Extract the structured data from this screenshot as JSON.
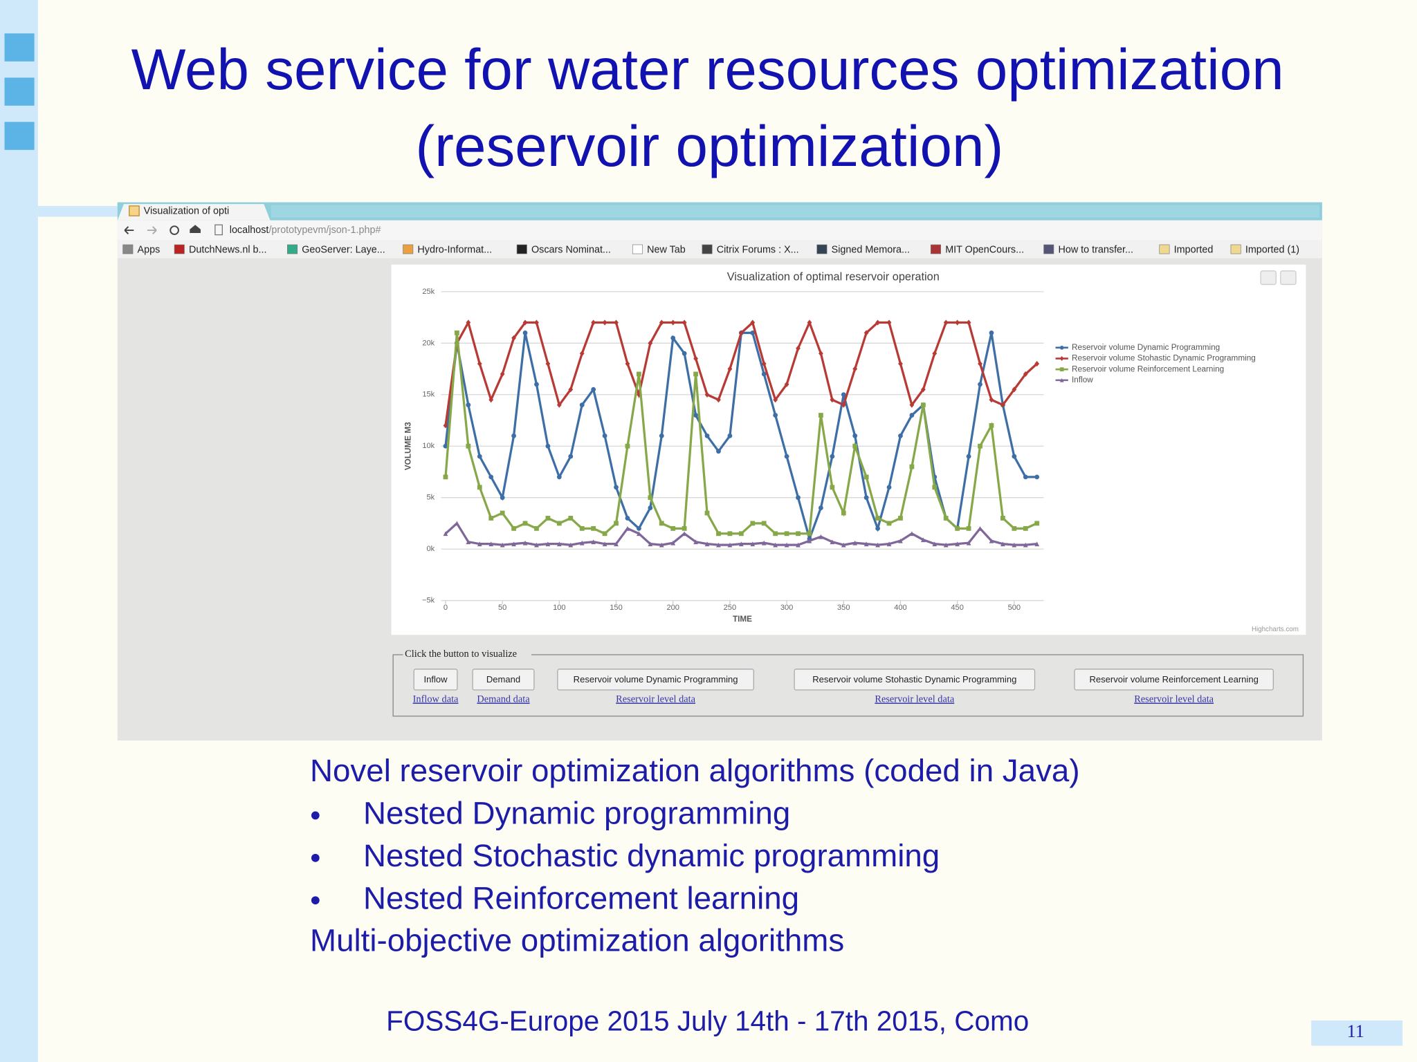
{
  "slide": {
    "title": [
      "Web service for water resources optimization",
      "(reservoir optimization)"
    ],
    "body": {
      "heading": "Novel reservoir optimization algorithms (coded in Java)",
      "bullets": [
        "Nested Dynamic programming",
        "Nested Stochastic dynamic programming",
        "Nested Reinforcement learning"
      ],
      "closing": "Multi-objective optimization algorithms"
    },
    "footer": "FOSS4G-Europe 2015 July 14th - 17th 2015, Como",
    "page_number": "11"
  },
  "browser": {
    "tab_title": "Visualization of opti",
    "url": {
      "host": "localhost",
      "path": "/prototypevm/json-1.php#"
    },
    "bookmarks": [
      "Apps",
      "DutchNews.nl b...",
      "GeoServer: Laye...",
      "Hydro-Informat...",
      "Oscars Nominat...",
      "New Tab",
      "Citrix Forums : X...",
      "Signed Memora...",
      "MIT OpenCours...",
      "How to transfer...",
      "Imported",
      "Imported (1)"
    ]
  },
  "chart_data": {
    "type": "line",
    "title": "Visualization of optimal reservoir operation",
    "x_label": "TIME",
    "y_label": "VOLUME M3",
    "credits": "Highcharts.com",
    "x": [
      0,
      10,
      20,
      30,
      40,
      50,
      60,
      70,
      80,
      90,
      100,
      110,
      120,
      130,
      140,
      150,
      160,
      170,
      180,
      190,
      200,
      210,
      220,
      230,
      240,
      250,
      260,
      270,
      280,
      290,
      300,
      310,
      320,
      330,
      340,
      350,
      360,
      370,
      380,
      390,
      400,
      410,
      420,
      430,
      440,
      450,
      460,
      470,
      480,
      490,
      500,
      510,
      520
    ],
    "series": [
      {
        "name": "Reservoir volume Dynamic Programming",
        "color": "#3d6fa6",
        "marker": "circle",
        "values": [
          10000,
          20000,
          14000,
          9000,
          7000,
          5000,
          11000,
          21000,
          16000,
          10000,
          7000,
          9000,
          14000,
          15500,
          11000,
          6000,
          3000,
          2000,
          4000,
          11000,
          20500,
          19000,
          13000,
          11000,
          9500,
          11000,
          21000,
          21000,
          17000,
          13000,
          9000,
          5000,
          1000,
          4000,
          9000,
          15000,
          11000,
          5000,
          2000,
          6000,
          11000,
          13000,
          14000,
          7000,
          3000,
          2000,
          9000,
          16000,
          21000,
          14000,
          9000,
          7000,
          7000
        ]
      },
      {
        "name": "Reservoir volume Stohastic Dynamic Programming",
        "color": "#b83a35",
        "marker": "diamond",
        "values": [
          12000,
          20000,
          22000,
          18000,
          14500,
          17000,
          20500,
          22000,
          22000,
          18000,
          14000,
          15500,
          19000,
          22000,
          22000,
          22000,
          18000,
          15000,
          20000,
          22000,
          22000,
          22000,
          18500,
          15000,
          14500,
          17500,
          21000,
          22000,
          18000,
          14500,
          16000,
          19500,
          22000,
          19000,
          14500,
          14000,
          17500,
          21000,
          22000,
          22000,
          18000,
          14000,
          15500,
          19000,
          22000,
          22000,
          22000,
          18000,
          14500,
          14000,
          15500,
          17000,
          18000
        ]
      },
      {
        "name": "Reservoir volume Reinforcement Learning",
        "color": "#87a849",
        "marker": "square",
        "values": [
          7000,
          21000,
          10000,
          6000,
          3000,
          3500,
          2000,
          2500,
          2000,
          3000,
          2500,
          3000,
          2000,
          2000,
          1500,
          2500,
          10000,
          17000,
          5000,
          2500,
          2000,
          2000,
          17000,
          3500,
          1500,
          1500,
          1500,
          2500,
          2500,
          1500,
          1500,
          1500,
          1500,
          13000,
          6000,
          3500,
          10000,
          7000,
          3000,
          2500,
          3000,
          8000,
          14000,
          6000,
          3000,
          2000,
          2000,
          10000,
          12000,
          3000,
          2000,
          2000,
          2500
        ]
      },
      {
        "name": "Inflow",
        "color": "#7f679a",
        "marker": "triangle",
        "values": [
          1500,
          2500,
          700,
          500,
          500,
          400,
          500,
          600,
          400,
          500,
          500,
          400,
          600,
          700,
          500,
          500,
          2000,
          1500,
          500,
          400,
          600,
          1500,
          700,
          500,
          400,
          400,
          500,
          500,
          600,
          400,
          400,
          400,
          800,
          1200,
          700,
          400,
          600,
          500,
          400,
          500,
          800,
          1500,
          900,
          500,
          400,
          500,
          600,
          2000,
          800,
          500,
          400,
          400,
          500
        ]
      }
    ],
    "xlim": [
      -4,
      526
    ],
    "ylim": [
      -5000,
      25000
    ],
    "xticks": [
      0,
      50,
      100,
      150,
      200,
      250,
      300,
      350,
      400,
      450,
      500
    ],
    "yticks": [
      {
        "value": 25000,
        "label": "25k"
      },
      {
        "value": 20000,
        "label": "20k"
      },
      {
        "value": 15000,
        "label": "15k"
      },
      {
        "value": 10000,
        "label": "10k"
      },
      {
        "value": 5000,
        "label": "5k"
      },
      {
        "value": 0,
        "label": "0k"
      },
      {
        "value": -5000,
        "label": "−5k"
      }
    ],
    "grid": true,
    "legend": "right"
  },
  "controls": {
    "caption": "Click the button to visualize",
    "buttons": [
      {
        "label": "Inflow",
        "link": "Inflow data"
      },
      {
        "label": "Demand",
        "link": "Demand data"
      },
      {
        "label": "Reservoir volume Dynamic Programming",
        "link": "Reservoir level data"
      },
      {
        "label": "Reservoir volume Stohastic Dynamic Programming",
        "link": "Reservoir level data"
      },
      {
        "label": "Reservoir volume Reinforcement Learning",
        "link": "Reservoir level data"
      }
    ]
  }
}
